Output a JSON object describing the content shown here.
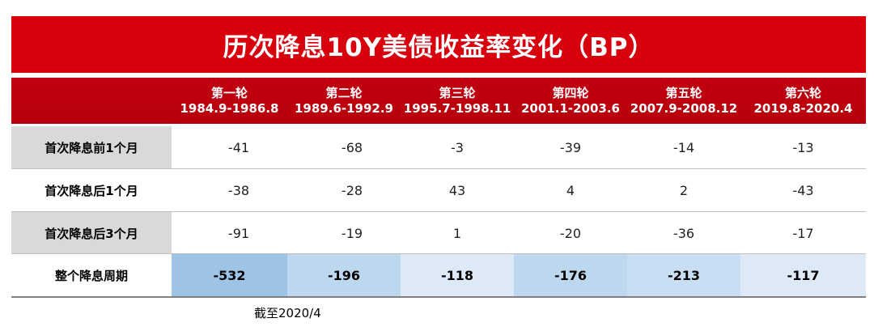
{
  "title": "历次降息10Y美债收益率变化（BP）",
  "columns": [
    {
      "round": "第一轮",
      "range": "1984.9-1986.8"
    },
    {
      "round": "第二轮",
      "range": "1989.6-1992.9"
    },
    {
      "round": "第三轮",
      "range": "1995.7-1998.11"
    },
    {
      "round": "第四轮",
      "range": "2001.1-2003.6"
    },
    {
      "round": "第五轮",
      "range": "2007.9-2008.12"
    },
    {
      "round": "第六轮",
      "range": "2019.8-2020.4"
    }
  ],
  "rows": [
    {
      "label": "首次降息前1个月",
      "values": [
        "-41",
        "-68",
        "-3",
        "-39",
        "-14",
        "-13"
      ]
    },
    {
      "label": "首次降息后1个月",
      "values": [
        "-38",
        "-28",
        "43",
        "4",
        "2",
        "-43"
      ]
    },
    {
      "label": "首次降息后3个月",
      "values": [
        "-91",
        "-19",
        "1",
        "-20",
        "-36",
        "-17"
      ]
    }
  ],
  "total": {
    "label": "整个降息周期",
    "values": [
      "-532",
      "-196",
      "-118",
      "-176",
      "-213",
      "-117"
    ]
  },
  "total_colors": [
    "#9dc3e6",
    "#bdd7ee",
    "#dde9f6",
    "#bdd7ee",
    "#c9def2",
    "#dde9f6"
  ],
  "note": "截至2020/4"
}
